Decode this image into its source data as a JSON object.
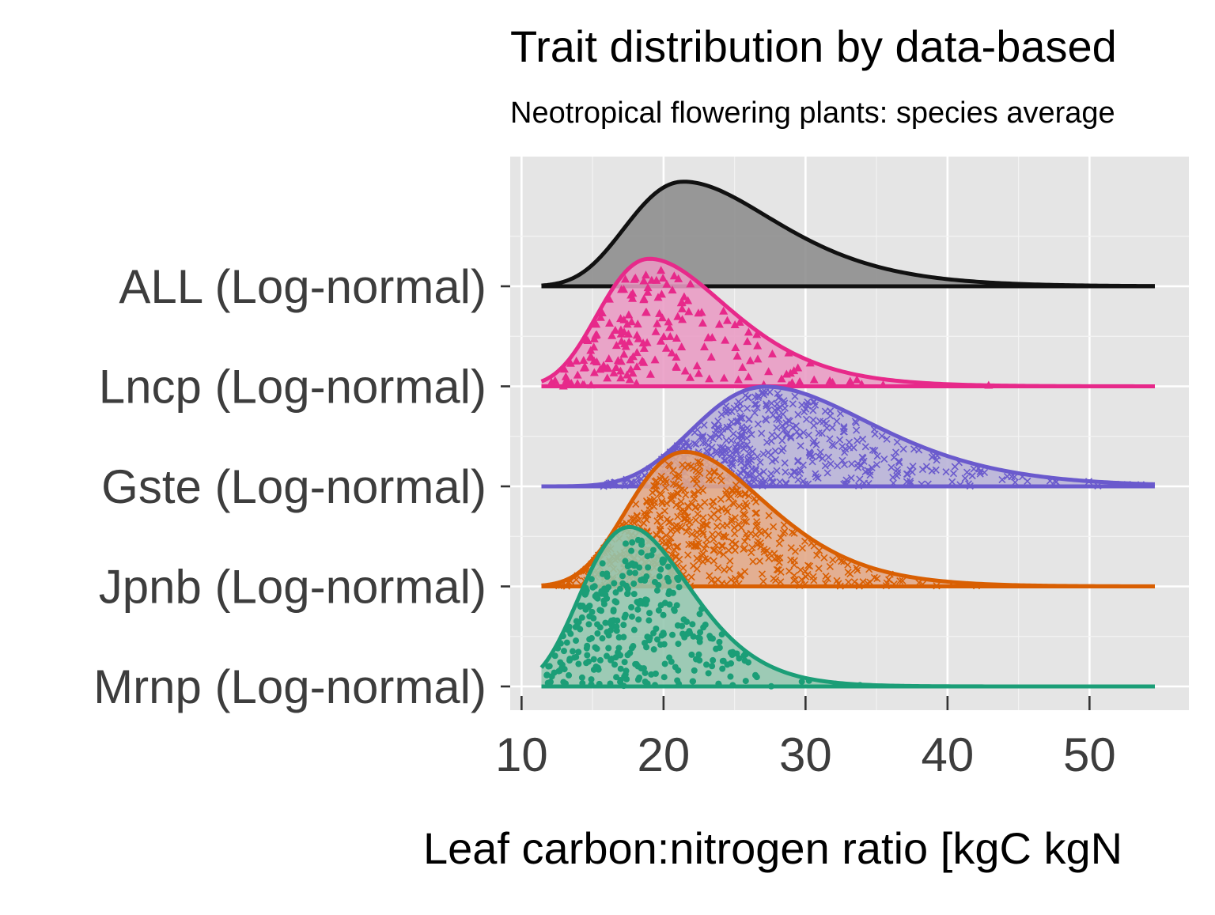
{
  "chart_data": {
    "type": "ridgeline",
    "title": "Trait distribution by data-based",
    "subtitle": "Neotropical flowering plants: species average",
    "xlabel": "Leaf carbon:nitrogen ratio [kgC kgN",
    "ylabel": "",
    "xlim": [
      9.2,
      57.0
    ],
    "xticks": [
      10,
      20,
      30,
      40,
      50
    ],
    "grid": true,
    "legend": "none",
    "series": [
      {
        "name": "ALL (Log-normal)",
        "color": "#111111",
        "fill": "#8c8c8c",
        "marker": "none",
        "x_range": [
          11.4,
          54.6
        ],
        "mode": 21.4,
        "peak": 1.05,
        "sigma_left": 0.2,
        "sigma_right": 0.27,
        "points": 0
      },
      {
        "name": "Lncp (Log-normal)",
        "color": "#e7298a",
        "fill": "#e99bc4",
        "marker": "triangle",
        "x_range": [
          11.4,
          54.6
        ],
        "mode": 19.0,
        "peak": 1.28,
        "sigma_left": 0.2,
        "sigma_right": 0.26,
        "points": 190
      },
      {
        "name": "Gste (Log-normal)",
        "color": "#6a5acd",
        "fill": "#b8b3d8",
        "marker": "x",
        "x_range": [
          11.4,
          54.6
        ],
        "mode": 27.2,
        "peak": 1.0,
        "sigma_left": 0.2,
        "sigma_right": 0.25,
        "points": 520
      },
      {
        "name": "Jpnb (Log-normal)",
        "color": "#d95f02",
        "fill": "#e2a786",
        "marker": "x",
        "x_range": [
          11.4,
          54.6
        ],
        "mode": 21.5,
        "peak": 1.35,
        "sigma_left": 0.2,
        "sigma_right": 0.24,
        "points": 560
      },
      {
        "name": "Mrnp (Log-normal)",
        "color": "#1b9e77",
        "fill": "#93c6ae",
        "marker": "circle",
        "x_range": [
          11.4,
          54.6
        ],
        "mode": 17.6,
        "peak": 1.6,
        "sigma_left": 0.21,
        "sigma_right": 0.22,
        "points": 330
      }
    ]
  }
}
